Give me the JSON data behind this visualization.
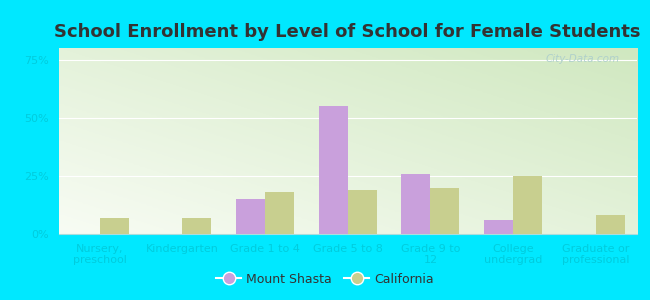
{
  "title": "School Enrollment by Level of School for Female Students",
  "categories": [
    "Nursery,\npreschool",
    "Kindergarten",
    "Grade 1 to 4",
    "Grade 5 to 8",
    "Grade 9 to\n12",
    "College\nundergrad",
    "Graduate or\nprofessional"
  ],
  "mount_shasta": [
    0,
    0,
    15,
    55,
    26,
    6,
    0
  ],
  "california": [
    7,
    7,
    18,
    19,
    20,
    25,
    8
  ],
  "mount_shasta_color": "#c9a0dc",
  "california_color": "#c8cf8f",
  "background_outer": "#00e8ff",
  "background_inner_topleft": "#d8edd8",
  "background_inner_bottomright": "#f8fbf0",
  "ylim": [
    0,
    80
  ],
  "yticks": [
    0,
    25,
    50,
    75
  ],
  "ytick_labels": [
    "0%",
    "25%",
    "50%",
    "75%"
  ],
  "bar_width": 0.35,
  "legend_labels": [
    "Mount Shasta",
    "California"
  ],
  "title_fontsize": 13,
  "axis_fontsize": 8,
  "legend_fontsize": 9,
  "tick_color": "#00ccdd",
  "watermark": "City-Data.com"
}
